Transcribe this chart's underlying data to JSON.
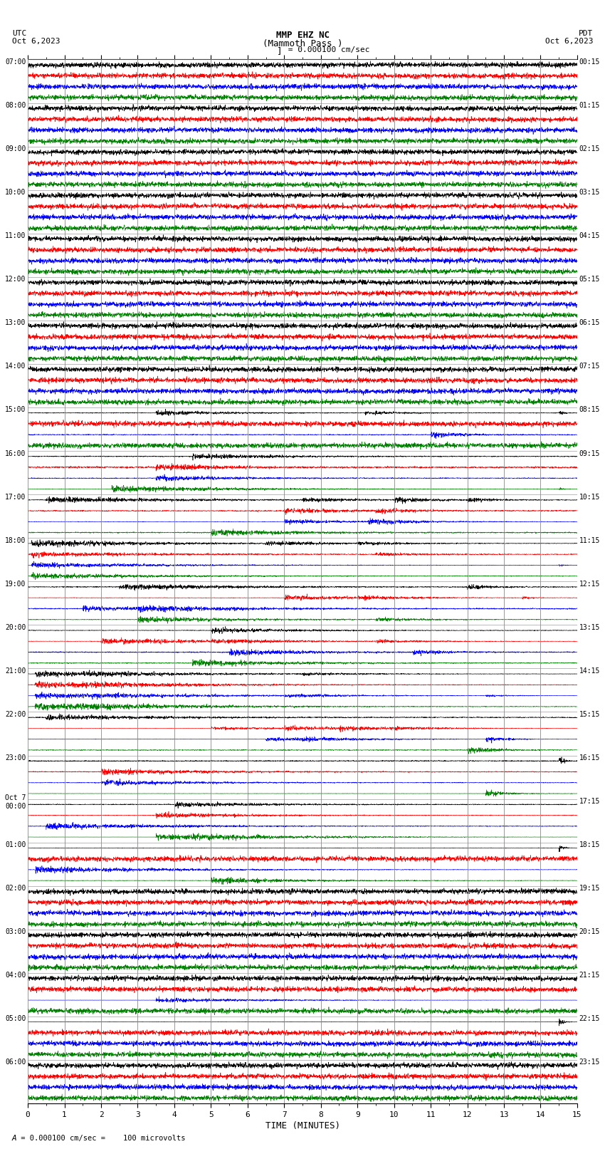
{
  "title_line1": "MMP EHZ NC",
  "title_line2": "(Mammoth Pass )",
  "title_line3": "I = 0.000100 cm/sec",
  "left_header_line1": "UTC",
  "left_header_line2": "Oct 6,2023",
  "right_header_line1": "PDT",
  "right_header_line2": "Oct 6,2023",
  "xlabel": "TIME (MINUTES)",
  "bottom_note_prefix": "A",
  "bottom_note": " = 0.000100 cm/sec =    100 microvolts",
  "x_ticks": [
    0,
    1,
    2,
    3,
    4,
    5,
    6,
    7,
    8,
    9,
    10,
    11,
    12,
    13,
    14,
    15
  ],
  "time_range_minutes": 15,
  "n_rows": 24,
  "traces_per_row": 4,
  "trace_colors": [
    "black",
    "red",
    "blue",
    "green"
  ],
  "utc_labels": [
    "07:00",
    "08:00",
    "09:00",
    "10:00",
    "11:00",
    "12:00",
    "13:00",
    "14:00",
    "15:00",
    "16:00",
    "17:00",
    "18:00",
    "19:00",
    "20:00",
    "21:00",
    "22:00",
    "23:00",
    "Oct 7\n00:00",
    "01:00",
    "02:00",
    "03:00",
    "04:00",
    "05:00",
    "06:00"
  ],
  "pdt_labels": [
    "00:15",
    "01:15",
    "02:15",
    "03:15",
    "04:15",
    "05:15",
    "06:15",
    "07:15",
    "08:15",
    "09:15",
    "10:15",
    "11:15",
    "12:15",
    "13:15",
    "14:15",
    "15:15",
    "16:15",
    "17:15",
    "18:15",
    "19:15",
    "20:15",
    "21:15",
    "22:15",
    "23:15"
  ],
  "background_color": "white",
  "vgrid_color": "#888888",
  "hgrid_color": "#888888",
  "figure_width": 8.5,
  "figure_height": 16.13,
  "dpi": 100,
  "seed": 42,
  "samples_per_minute": 200
}
